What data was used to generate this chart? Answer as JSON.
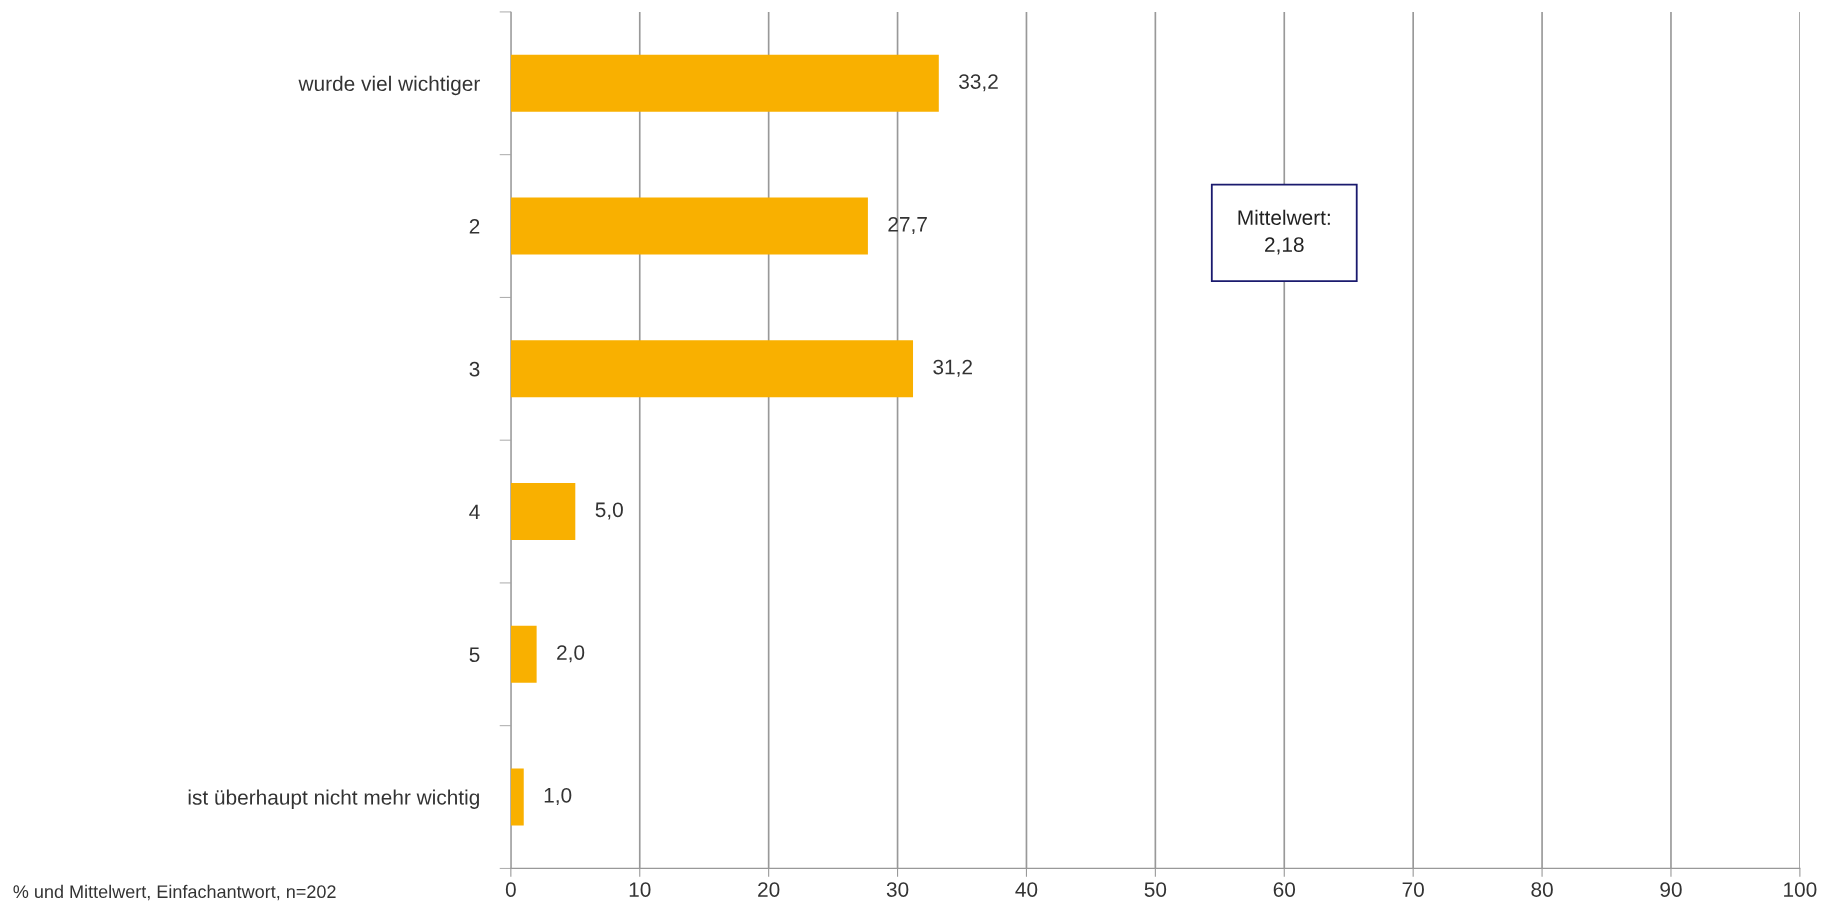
{
  "chart_data": {
    "type": "bar",
    "orientation": "horizontal",
    "categories": [
      "wurde viel wichtiger",
      "2",
      "3",
      "4",
      "5",
      "ist überhaupt nicht mehr wichtig"
    ],
    "values": [
      33.2,
      27.7,
      31.2,
      5.0,
      2.0,
      1.0
    ],
    "value_labels": [
      "33,2",
      "27,7",
      "31,2",
      "5,0",
      "2,0",
      "1,0"
    ],
    "color": "#f9b000",
    "xlim": [
      0,
      100
    ],
    "xticks": [
      0,
      10,
      20,
      30,
      40,
      50,
      60,
      70,
      80,
      90,
      100
    ],
    "grid": "x",
    "annotations": [
      "Mittelwert:\n2,18",
      "% und Mittelwert, Einfachantwort, n=202"
    ]
  }
}
